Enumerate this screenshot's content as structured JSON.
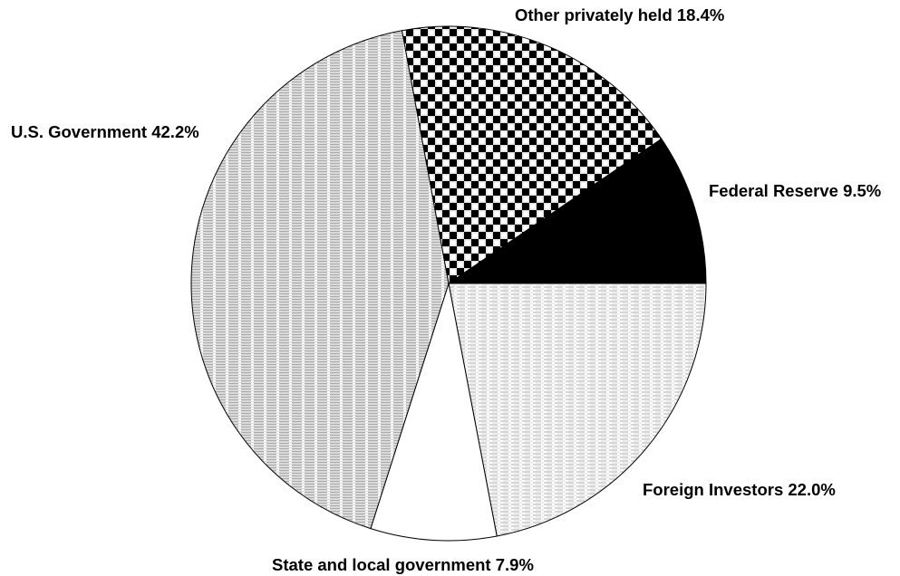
{
  "chart_data": {
    "type": "pie",
    "title": "",
    "start": "east",
    "direction": "clockwise",
    "slices": [
      {
        "label": "Foreign Investors 22.0%",
        "name": "Foreign Investors",
        "value": 22.0,
        "pattern": "fine-horizontal-lines",
        "fill": "#ffffff"
      },
      {
        "label": "State and local government 7.9%",
        "name": "State and local government",
        "value": 7.9,
        "pattern": "none",
        "fill": "#ffffff"
      },
      {
        "label": "U.S. Government 42.2%",
        "name": "U.S. Government",
        "value": 42.2,
        "pattern": "dense-horizontal-lines",
        "fill": "#ffffff"
      },
      {
        "label": "Other privately held 18.4%",
        "name": "Other privately held",
        "value": 18.4,
        "pattern": "checkerboard",
        "fill": "#ffffff"
      },
      {
        "label": "Federal Reserve 9.5%",
        "name": "Federal Reserve",
        "value": 9.5,
        "pattern": "solid",
        "fill": "#000000"
      }
    ]
  }
}
